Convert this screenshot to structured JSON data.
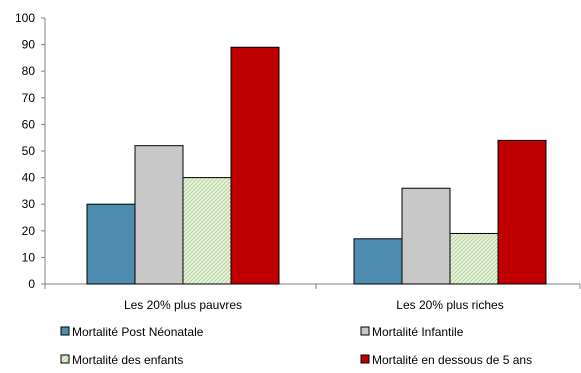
{
  "chart_data": {
    "type": "bar",
    "title": "",
    "xlabel": "",
    "ylabel": "",
    "categories": [
      "Les 20% plus pauvres",
      "Les 20% plus riches"
    ],
    "series": [
      {
        "name": "Mortalité Post Néonatale",
        "values": [
          30,
          17
        ],
        "color": "#4f8db0",
        "pattern": "solid"
      },
      {
        "name": "Mortalité Infantile",
        "values": [
          52,
          36
        ],
        "color": "#c8c8c8",
        "pattern": "solid"
      },
      {
        "name": "Mortalité des enfants",
        "values": [
          40,
          19
        ],
        "color": "#e3f1d6",
        "pattern": "hatch"
      },
      {
        "name": "Mortalité en dessous de 5 ans",
        "values": [
          89,
          54
        ],
        "color": "#c00000",
        "pattern": "solid"
      }
    ],
    "ylim": [
      0,
      100
    ],
    "yticks": [
      0,
      10,
      20,
      30,
      40,
      50,
      60,
      70,
      80,
      90,
      100
    ],
    "grid": false,
    "legend_position": "bottom"
  }
}
